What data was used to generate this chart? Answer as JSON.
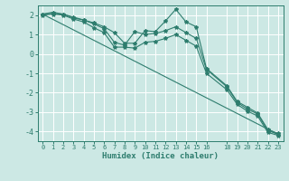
{
  "xlabel": "Humidex (Indice chaleur)",
  "ylabel": "",
  "bg_color": "#cce8e4",
  "grid_color": "#b8d8d4",
  "line_color": "#2e7d6e",
  "xlim": [
    -0.5,
    23.5
  ],
  "ylim": [
    -4.5,
    2.5
  ],
  "yticks": [
    -4,
    -3,
    -2,
    -1,
    0,
    1,
    2
  ],
  "xticks": [
    0,
    1,
    2,
    3,
    4,
    5,
    6,
    7,
    8,
    9,
    10,
    11,
    12,
    13,
    14,
    15,
    16,
    18,
    19,
    20,
    21,
    22,
    23
  ],
  "line1_x": [
    0,
    1,
    2,
    3,
    4,
    5,
    6,
    7,
    8,
    9,
    10,
    11,
    12,
    13,
    14,
    15,
    16,
    18,
    19,
    20,
    21,
    22,
    23
  ],
  "line1_y": [
    2.05,
    2.15,
    2.05,
    1.9,
    1.75,
    1.6,
    1.4,
    1.1,
    0.55,
    0.55,
    1.2,
    1.15,
    1.7,
    2.3,
    1.65,
    1.4,
    -0.75,
    -1.65,
    -2.45,
    -2.75,
    -3.05,
    -3.9,
    -4.1
  ],
  "line2_x": [
    0,
    1,
    2,
    3,
    4,
    5,
    6,
    7,
    8,
    9,
    10,
    11,
    12,
    13,
    14,
    15,
    16,
    18,
    19,
    20,
    21,
    22,
    23
  ],
  "line2_y": [
    2.05,
    2.1,
    2.05,
    1.85,
    1.75,
    1.55,
    1.3,
    0.6,
    0.45,
    1.15,
    1.0,
    1.05,
    1.2,
    1.4,
    1.1,
    0.8,
    -0.8,
    -1.7,
    -2.5,
    -2.85,
    -3.1,
    -3.95,
    -4.15
  ],
  "line3_x": [
    0,
    1,
    2,
    3,
    4,
    5,
    6,
    7,
    8,
    9,
    10,
    11,
    12,
    13,
    14,
    15,
    16,
    18,
    19,
    20,
    21,
    22,
    23
  ],
  "line3_y": [
    2.0,
    2.05,
    2.0,
    1.8,
    1.65,
    1.35,
    1.1,
    0.35,
    0.35,
    0.3,
    0.6,
    0.65,
    0.8,
    1.0,
    0.7,
    0.4,
    -1.0,
    -1.85,
    -2.6,
    -2.95,
    -3.2,
    -4.05,
    -4.2
  ],
  "line4_x": [
    0,
    23
  ],
  "line4_y": [
    2.05,
    -4.15
  ],
  "marker": "*",
  "markersize": 3,
  "linewidth": 0.8
}
